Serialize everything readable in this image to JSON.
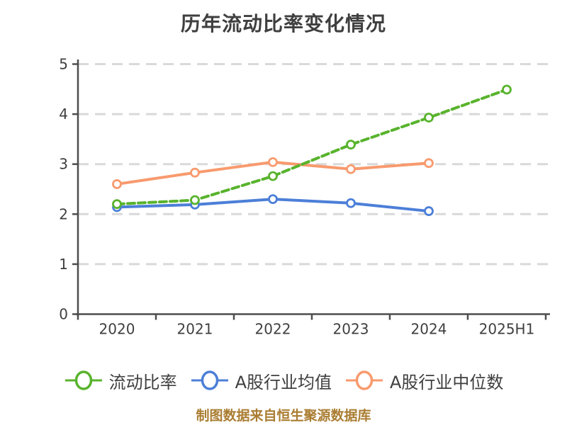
{
  "title": "历年流动比率变化情况",
  "footer_note": "制图数据来自恒生聚源数据库",
  "colors": {
    "title_text": "#3f3f3f",
    "axis": "#4d4d4d",
    "tick_label": "#3f3f3f",
    "grid": "#d9d9d9",
    "legend_text": "#3f3f3f",
    "footer_text": "#aa7d32",
    "marker_fill": "#ffffff",
    "series_current_ratio": "#58b32c",
    "series_industry_mean": "#4c7fd8",
    "series_industry_median": "#f89a6e"
  },
  "chart_data": {
    "type": "line",
    "title": "历年流动比率变化情况",
    "categories": [
      "2020",
      "2021",
      "2022",
      "2023",
      "2024",
      "2025H1"
    ],
    "series": [
      {
        "id": "current-ratio",
        "name": "流动比率",
        "color": "#58b32c",
        "line_style": "dashed",
        "marker": "circle-white-fill",
        "values": [
          2.2,
          2.28,
          2.76,
          3.39,
          3.93,
          4.49
        ]
      },
      {
        "id": "industry-mean",
        "name": "A股行业均值",
        "color": "#4c7fd8",
        "line_style": "solid",
        "marker": "circle-white-fill",
        "values": [
          2.14,
          2.19,
          2.3,
          2.22,
          2.06,
          null
        ]
      },
      {
        "id": "industry-median",
        "name": "A股行业中位数",
        "color": "#f89a6e",
        "line_style": "solid",
        "marker": "circle-white-fill",
        "values": [
          2.6,
          2.83,
          3.04,
          2.9,
          3.02,
          null
        ]
      }
    ],
    "xlabel": "",
    "ylabel": "",
    "ylim": [
      0,
      5
    ],
    "yticks": [
      0,
      1,
      2,
      3,
      4,
      5
    ],
    "grid": "horizontal-dashed",
    "legend_position": "bottom"
  },
  "legend": {
    "items": [
      {
        "label": "流动比率",
        "color": "#58b32c"
      },
      {
        "label": "A股行业均值",
        "color": "#4c7fd8"
      },
      {
        "label": "A股行业中位数",
        "color": "#f89a6e"
      }
    ]
  }
}
